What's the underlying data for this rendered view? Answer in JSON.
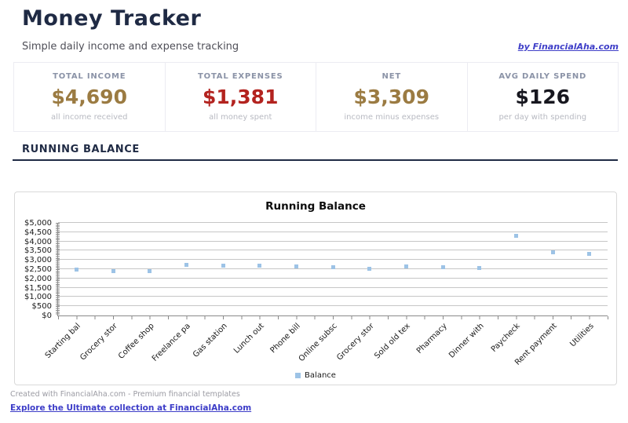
{
  "header": {
    "title": "Money Tracker",
    "subtitle": "Simple daily income and expense tracking",
    "byline_link": "by FinancialAha.com"
  },
  "stats": {
    "items": [
      {
        "label": "TOTAL INCOME",
        "value": "$4,690",
        "sub": "all income received",
        "color": "#9b7b42"
      },
      {
        "label": "TOTAL EXPENSES",
        "value": "$1,381",
        "sub": "all money spent",
        "color": "#b3231f"
      },
      {
        "label": "NET",
        "value": "$3,309",
        "sub": "income minus expenses",
        "color": "#9b7b42"
      },
      {
        "label": "AVG DAILY SPEND",
        "value": "$126",
        "sub": "per day with spending",
        "color": "#17171f"
      }
    ]
  },
  "section": {
    "heading": "RUNNING BALANCE"
  },
  "chart_data": {
    "type": "scatter",
    "title": "Running Balance",
    "categories": [
      "Starting bal",
      "Grocery stor",
      "Coffee shop",
      "Freelance pa",
      "Gas station",
      "Lunch out",
      "Phone bill",
      "Online subsc",
      "Grocery stor",
      "Sold old tex",
      "Pharmacy",
      "Dinner with",
      "Paycheck",
      "Rent payment",
      "Utilities"
    ],
    "series": [
      {
        "name": "Balance",
        "values": [
          2500,
          2415,
          2403,
          2753,
          2708,
          2690,
          2630,
          2615,
          2523,
          2643,
          2615,
          2561,
          4281,
          3431,
          3309
        ]
      }
    ],
    "ylim": [
      0,
      5000
    ],
    "ytick_step": 500,
    "ytick_format": "$#,##0",
    "xlabel": "",
    "ylabel": "",
    "grid": true,
    "legend_position": "bottom",
    "marker_color": "#9dc3e6",
    "grid_color": "#c6c6c6",
    "axis_color": "#8a8a8a"
  },
  "footer": {
    "credit": "Created with FinancialAha.com - Premium financial templates",
    "link": "Explore the Ultimate collection at FinancialAha.com"
  },
  "colors": {
    "heading_navy": "#1f2a44",
    "link_blue": "#3f3fc8",
    "income_gold": "#9b7b42",
    "expense_red": "#b3231f"
  }
}
